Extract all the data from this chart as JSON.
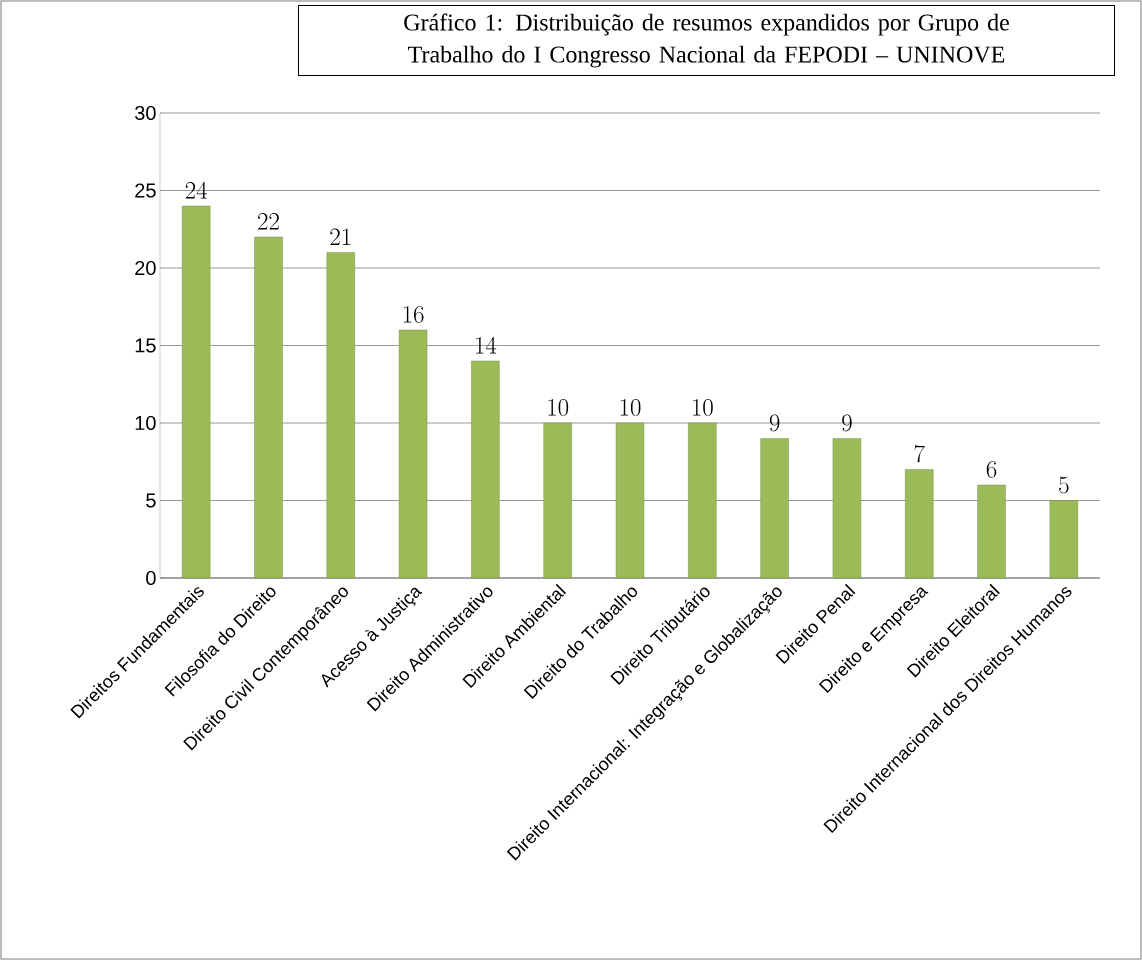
{
  "chart_data": {
    "type": "bar",
    "title": "Gráfico 1: Distribuição de resumos expandidos por Grupo de Trabalho do I Congresso Nacional da FEPODI – UNINOVE",
    "categories": [
      "Direitos Fundamentais",
      "Filosofia do Direito",
      "Direito Civil Contemporâneo",
      "Acesso à Justiça",
      "Direito Administrativo",
      "Direito Ambiental",
      "Direito do Trabalho",
      "Direito Tributário",
      "Direito Internacional: Integração e Globalização",
      "Direito Penal",
      "Direito e Empresa",
      "Direito Eleitoral",
      "Direito Internacional dos Direitos Humanos"
    ],
    "values": [
      24,
      22,
      21,
      16,
      14,
      10,
      10,
      10,
      9,
      9,
      7,
      6,
      5
    ],
    "color": "#9bbb59",
    "ylim": [
      0,
      30
    ],
    "yticks": [
      0,
      5,
      10,
      15,
      20,
      25,
      30
    ],
    "grid": "y",
    "data_labels": true
  }
}
